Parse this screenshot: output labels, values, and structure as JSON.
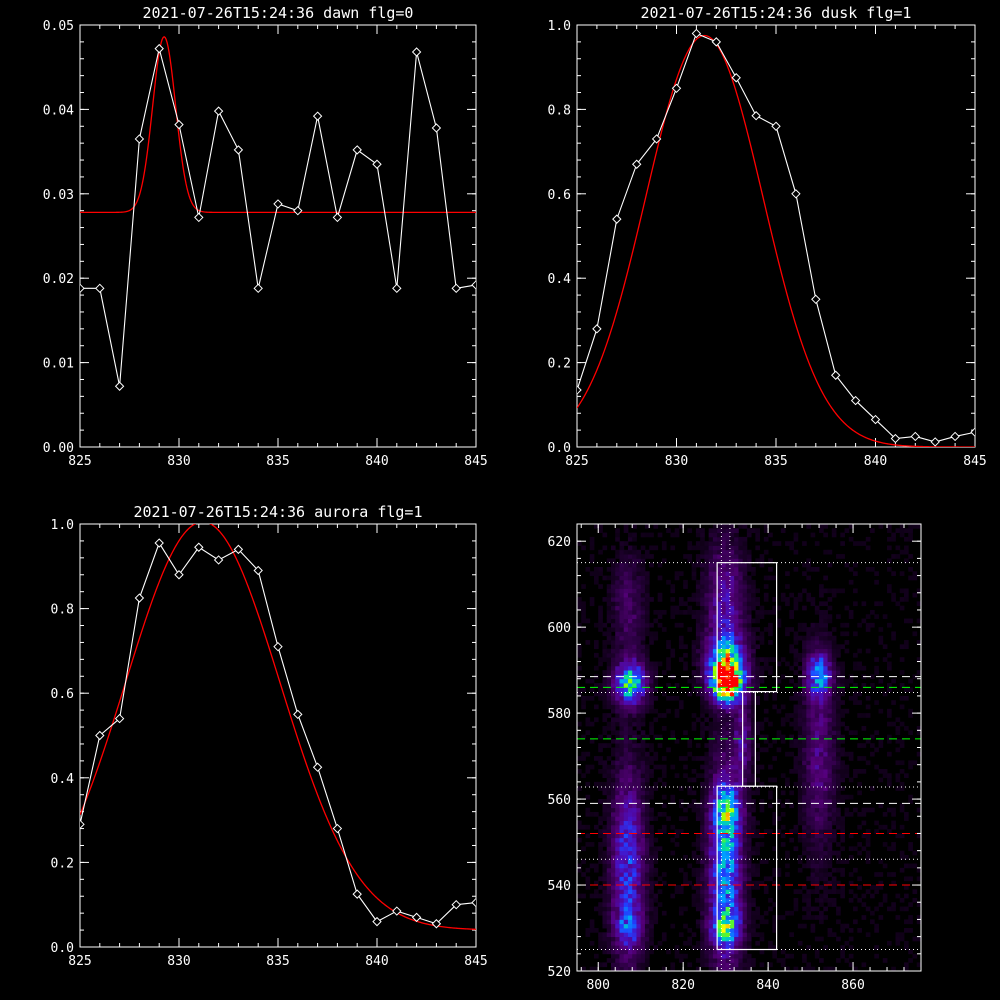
{
  "colors": {
    "background": "#000000",
    "data_line": "#ffffff",
    "fit_line": "#ff0000",
    "green_dash": "#00ff00",
    "red_dash": "#ff0000",
    "white_dash": "#ffffff"
  },
  "chart_data": [
    {
      "id": "dawn",
      "type": "line",
      "title": "2021-07-26T15:24:36 dawn flg=0",
      "xlim": [
        825,
        845
      ],
      "ylim": [
        0,
        0.05
      ],
      "xticks": [
        825,
        830,
        835,
        840,
        845
      ],
      "xticklabels": [
        "825",
        "830",
        "835",
        "840",
        "845"
      ],
      "yticks": [
        0,
        0.01,
        0.02,
        0.03,
        0.04,
        0.05
      ],
      "yticklabels": [
        "0.00",
        "0.01",
        "0.02",
        "0.03",
        "0.04",
        "0.05"
      ],
      "series": [
        {
          "marker": "diamond",
          "x": [
            825,
            826,
            827,
            828,
            829,
            830,
            831,
            832,
            833,
            834,
            835,
            836,
            837,
            838,
            839,
            840,
            841,
            842,
            843,
            844,
            845
          ],
          "y": [
            0.0188,
            0.0188,
            0.0072,
            0.0365,
            0.0472,
            0.0382,
            0.0272,
            0.0398,
            0.0352,
            0.0188,
            0.0288,
            0.028,
            0.0392,
            0.0272,
            0.0352,
            0.0335,
            0.0188,
            0.0468,
            0.0378,
            0.0188,
            0.0192
          ]
        }
      ],
      "fit": {
        "model": "gaussian",
        "baseline": 0.0278,
        "amplitude": 0.0208,
        "center": 829.25,
        "sigma": 0.58
      }
    },
    {
      "id": "dusk",
      "type": "line",
      "title": "2021-07-26T15:24:36 dusk flg=1",
      "xlim": [
        825,
        845
      ],
      "ylim": [
        0,
        1.0
      ],
      "xticks": [
        825,
        830,
        835,
        840,
        845
      ],
      "xticklabels": [
        "825",
        "830",
        "835",
        "840",
        "845"
      ],
      "yticks": [
        0,
        0.2,
        0.4,
        0.6,
        0.8,
        1.0
      ],
      "yticklabels": [
        "0.0",
        "0.2",
        "0.4",
        "0.6",
        "0.8",
        "1.0"
      ],
      "series": [
        {
          "marker": "diamond",
          "x": [
            825,
            826,
            827,
            828,
            829,
            830,
            831,
            832,
            833,
            834,
            835,
            836,
            837,
            838,
            839,
            840,
            841,
            842,
            843,
            844,
            845
          ],
          "y": [
            0.135,
            0.28,
            0.54,
            0.67,
            0.73,
            0.85,
            0.98,
            0.96,
            0.875,
            0.785,
            0.76,
            0.6,
            0.35,
            0.17,
            0.11,
            0.065,
            0.02,
            0.025,
            0.012,
            0.025,
            0.035
          ]
        }
      ],
      "fit": {
        "model": "gaussian",
        "baseline": 0.0,
        "amplitude": 0.975,
        "center": 831.4,
        "sigma": 2.95
      }
    },
    {
      "id": "aurora",
      "type": "line",
      "title": "2021-07-26T15:24:36 aurora flg=1",
      "xlim": [
        825,
        845
      ],
      "ylim": [
        0,
        1.0
      ],
      "xticks": [
        825,
        830,
        835,
        840,
        845
      ],
      "xticklabels": [
        "825",
        "830",
        "835",
        "840",
        "845"
      ],
      "yticks": [
        0,
        0.2,
        0.4,
        0.6,
        0.8,
        1.0
      ],
      "yticklabels": [
        "0.0",
        "0.2",
        "0.4",
        "0.6",
        "0.8",
        "1.0"
      ],
      "series": [
        {
          "marker": "diamond",
          "x": [
            825,
            826,
            827,
            828,
            829,
            830,
            831,
            832,
            833,
            834,
            835,
            836,
            837,
            838,
            839,
            840,
            841,
            842,
            843,
            844,
            845
          ],
          "y": [
            0.29,
            0.5,
            0.54,
            0.825,
            0.955,
            0.88,
            0.945,
            0.915,
            0.94,
            0.89,
            0.71,
            0.55,
            0.425,
            0.28,
            0.125,
            0.06,
            0.085,
            0.07,
            0.055,
            0.1,
            0.105
          ]
        }
      ],
      "fit": {
        "model": "gaussian",
        "baseline": 0.04,
        "amplitude": 0.965,
        "center": 831.2,
        "sigma": 3.9
      }
    },
    {
      "id": "image",
      "type": "heatmap",
      "title": "",
      "xlim": [
        795,
        876
      ],
      "ylim": [
        520,
        624
      ],
      "xticks": [
        800,
        820,
        840,
        860
      ],
      "xticklabels": [
        "800",
        "820",
        "840",
        "860"
      ],
      "yticks": [
        520,
        540,
        560,
        580,
        600,
        620
      ],
      "yticklabels": [
        "520",
        "540",
        "560",
        "580",
        "600",
        "620"
      ],
      "colormap": [
        "#000000",
        "#2a0040",
        "#55007a",
        "#4a10c0",
        "#2040ff",
        "#00a0ff",
        "#00e0a0",
        "#80ff00",
        "#ffff00",
        "#ff0000"
      ],
      "blobs": [
        {
          "x": 807.5,
          "y": 587,
          "sx": 2.5,
          "sy": 3.5,
          "amp": 0.62
        },
        {
          "x": 830.5,
          "y": 587,
          "sx": 2.5,
          "sy": 3.0,
          "amp": 1.0
        },
        {
          "x": 830,
          "y": 592,
          "sx": 3.0,
          "sy": 4.0,
          "amp": 0.55
        },
        {
          "x": 852,
          "y": 589,
          "sx": 2.0,
          "sy": 3.5,
          "amp": 0.45
        },
        {
          "x": 830,
          "y": 545,
          "sx": 2.6,
          "sy": 15,
          "amp": 0.55
        },
        {
          "x": 830.5,
          "y": 558,
          "sx": 2.2,
          "sy": 3.5,
          "amp": 0.35
        },
        {
          "x": 830,
          "y": 530,
          "sx": 2.5,
          "sy": 3.0,
          "amp": 0.35
        },
        {
          "x": 807,
          "y": 545,
          "sx": 2.6,
          "sy": 15,
          "amp": 0.38
        },
        {
          "x": 807,
          "y": 530,
          "sx": 2.2,
          "sy": 3.0,
          "amp": 0.25
        },
        {
          "x": 830,
          "y": 605,
          "sx": 3.0,
          "sy": 10,
          "amp": 0.28
        },
        {
          "x": 807,
          "y": 605,
          "sx": 2.5,
          "sy": 8,
          "amp": 0.15
        },
        {
          "x": 852,
          "y": 570,
          "sx": 2.5,
          "sy": 15,
          "amp": 0.2
        },
        {
          "x": 834,
          "y": 574,
          "sx": 1.5,
          "sy": 6,
          "amp": 0.22
        }
      ],
      "vlines": [
        {
          "x": 829,
          "style": "dotted",
          "color": "#ffffff"
        },
        {
          "x": 831,
          "style": "dotted",
          "color": "#ffffff"
        }
      ],
      "hlines": [
        {
          "y": 615,
          "style": "dotted",
          "color": "#ffffff"
        },
        {
          "y": 588.5,
          "style": "dashed",
          "color": "#ffffff"
        },
        {
          "y": 586,
          "style": "dashed",
          "color": "#00ff00"
        },
        {
          "y": 584.8,
          "style": "dotted",
          "color": "#ffffff"
        },
        {
          "y": 574,
          "style": "dashed",
          "color": "#00ff00"
        },
        {
          "y": 562.8,
          "style": "dotted",
          "color": "#ffffff"
        },
        {
          "y": 559,
          "style": "dashed",
          "color": "#ffffff"
        },
        {
          "y": 552,
          "style": "dashed",
          "color": "#ff0000"
        },
        {
          "y": 546,
          "style": "dotted",
          "color": "#ffffff"
        },
        {
          "y": 540,
          "style": "dashed",
          "color": "#ff0000"
        },
        {
          "y": 525,
          "style": "dotted",
          "color": "#ffffff"
        }
      ],
      "boxes": [
        {
          "x0": 828,
          "x1": 842,
          "y0": 585,
          "y1": 615
        },
        {
          "x0": 834,
          "x1": 837,
          "y0": 563,
          "y1": 585
        },
        {
          "x0": 828,
          "x1": 842,
          "y0": 525,
          "y1": 563
        }
      ]
    }
  ]
}
